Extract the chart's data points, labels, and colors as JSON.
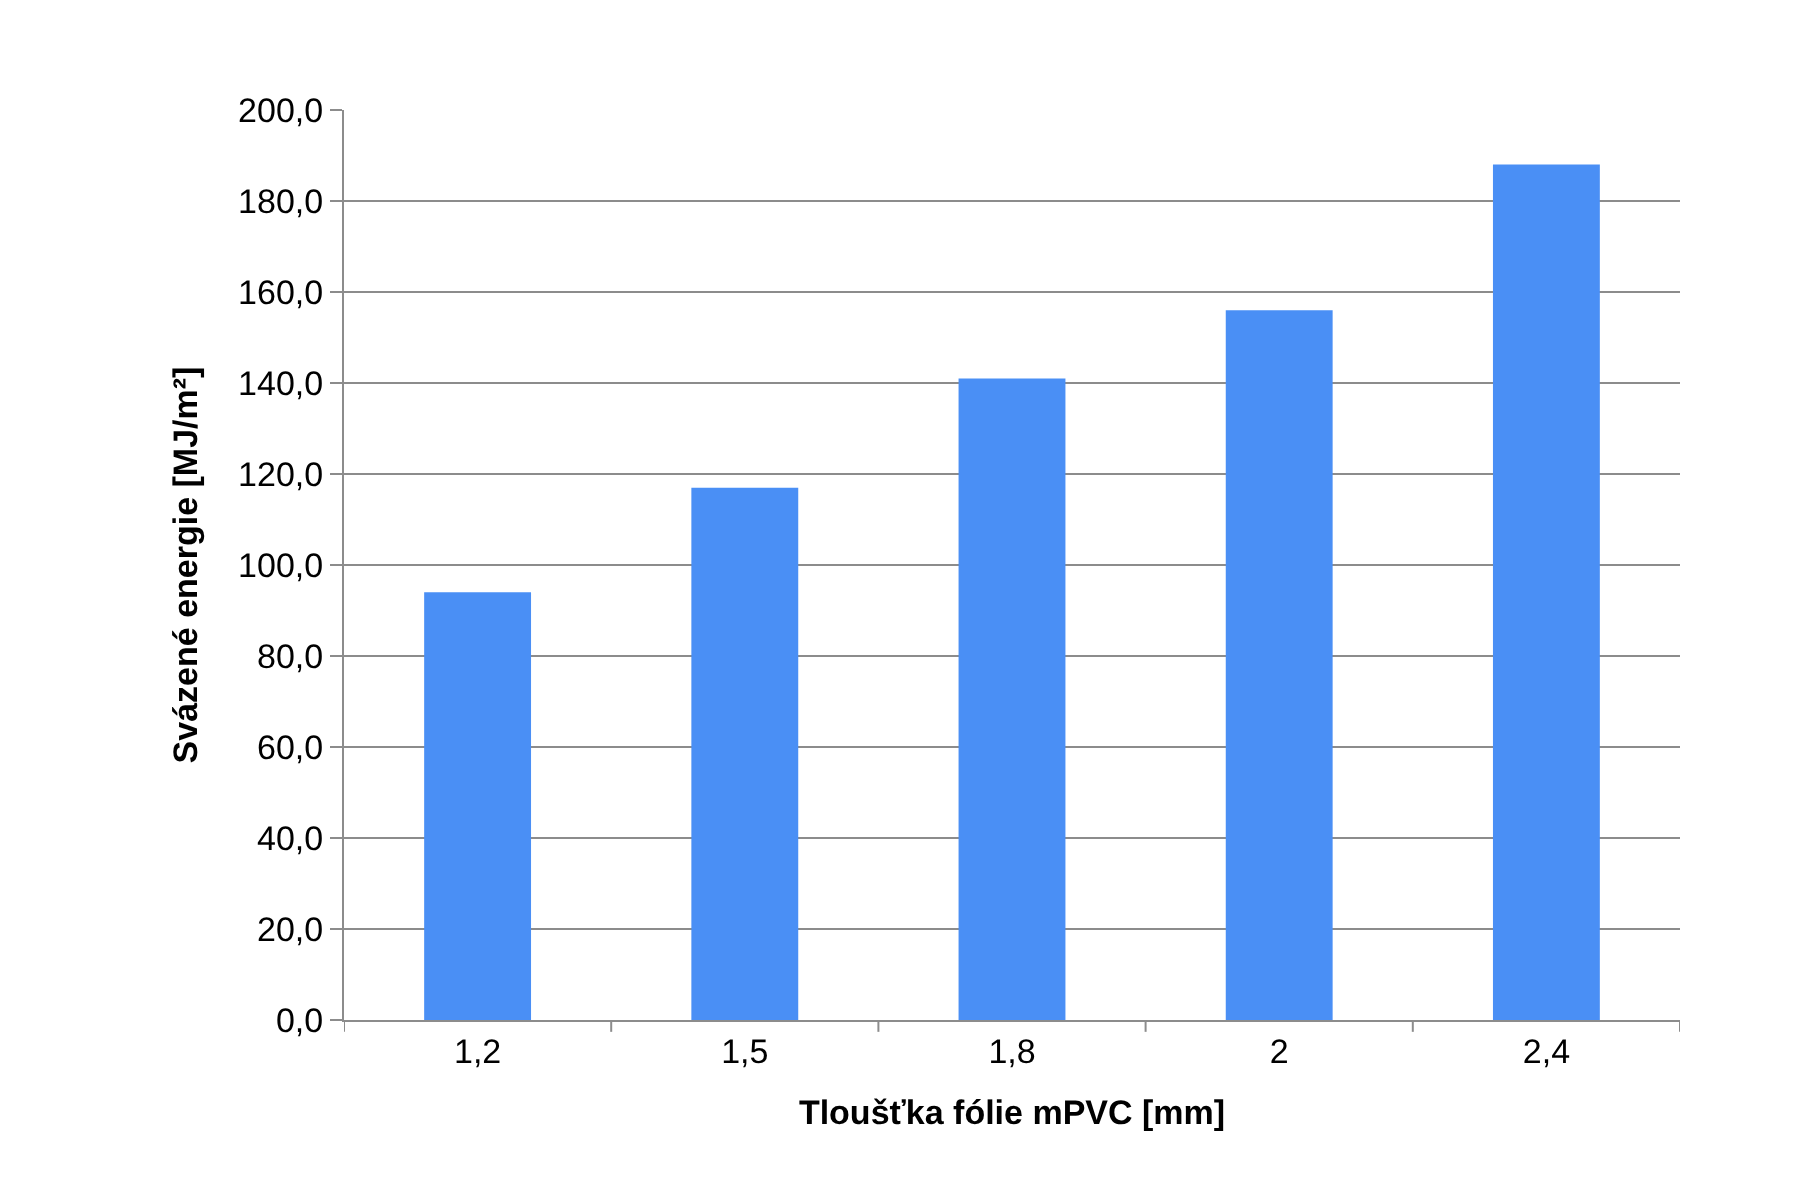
{
  "chart_data": {
    "type": "bar",
    "xlabel": "Tloušťka fólie mPVC [mm]",
    "ylabel": "Svázené energie [MJ/m²]",
    "categories": [
      "1,2",
      "1,5",
      "1,8",
      "2",
      "2,4"
    ],
    "series": [
      {
        "color": "#4a8ff5",
        "values": [
          94,
          117,
          141,
          156,
          188
        ]
      }
    ],
    "ylim": [
      0,
      200
    ],
    "yticks": [
      {
        "value": 0,
        "label": "0,0"
      },
      {
        "value": 20,
        "label": "20,0"
      },
      {
        "value": 40,
        "label": "40,0"
      },
      {
        "value": 60,
        "label": "60,0"
      },
      {
        "value": 80,
        "label": "80,0"
      },
      {
        "value": 100,
        "label": "100,0"
      },
      {
        "value": 120,
        "label": "120,0"
      },
      {
        "value": 140,
        "label": "140,0"
      },
      {
        "value": 160,
        "label": "160,0"
      },
      {
        "value": 180,
        "label": "180,0"
      },
      {
        "value": 200,
        "label": "200,0"
      }
    ],
    "grid": "y"
  }
}
